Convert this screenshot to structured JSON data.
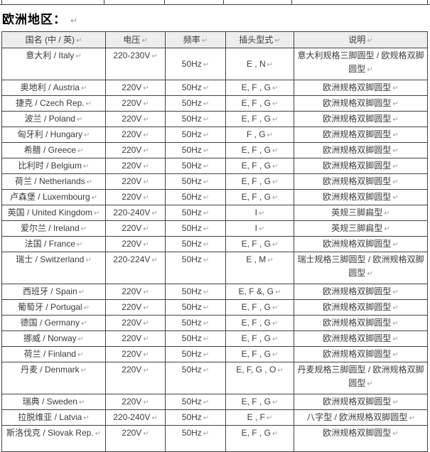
{
  "title": "欧洲地区：",
  "marks": {
    "eop": "↵"
  },
  "colors": {
    "header_bg": "#ededed",
    "border": "#424242",
    "text": "#3b3b3b",
    "mark": "#9c9c9c"
  },
  "table": {
    "headers": [
      "国名 (中 / 英)",
      "电压",
      "频率",
      "插头型式",
      "说明"
    ],
    "rows": [
      {
        "country": "意大利 / Italy",
        "voltage": "220-230V",
        "frequency": "50Hz",
        "plug": "E , N",
        "description": "意大利规格三脚圆型 / 欧规格双脚圆型",
        "size": "tall",
        "valign_middle": [
          "frequency",
          "plug"
        ]
      },
      {
        "country": "奥地利 / Austria",
        "voltage": "220V",
        "frequency": "50Hz",
        "plug": "E, F , G",
        "description": "欧洲规格双脚圆型"
      },
      {
        "country": "捷克 / Czech Rep.",
        "voltage": "220V",
        "frequency": "50Hz",
        "plug": "E, F , G",
        "description": "欧洲规格双脚圆型"
      },
      {
        "country": "波兰 / Poland",
        "voltage": "220V",
        "frequency": "50Hz",
        "plug": "E, F , G",
        "description": "欧洲规格双脚圆型"
      },
      {
        "country": "匈牙利 / Hungary",
        "voltage": "220V",
        "frequency": "50Hz",
        "plug": "F , G",
        "description": "欧洲规格双脚圆型"
      },
      {
        "country": "希腊 / Greece",
        "voltage": "220V",
        "frequency": "50Hz",
        "plug": "E, F , G",
        "description": "欧洲规格双脚圆型"
      },
      {
        "country": "比利时 / Belgium",
        "voltage": "220V",
        "frequency": "50Hz",
        "plug": "E, F , G",
        "description": "欧洲规格双脚圆型"
      },
      {
        "country": "荷兰 / Netherlands",
        "voltage": "220V",
        "frequency": "50Hz",
        "plug": "E, F , G",
        "description": "欧洲规格双脚圆型"
      },
      {
        "country": "卢森堡 / Luxembourg",
        "voltage": "220V",
        "frequency": "50Hz",
        "plug": "E, F , G",
        "description": "欧洲规格双脚圆型"
      },
      {
        "country": "英国 / United Kingdom",
        "voltage": "220-240V",
        "frequency": "50Hz",
        "plug": "I",
        "description": "英规三脚扁型"
      },
      {
        "country": "爱尔兰 / Ireland",
        "voltage": "220V",
        "frequency": "50Hz",
        "plug": "I",
        "description": "英规三脚扁型"
      },
      {
        "country": "法国 / France",
        "voltage": "220V",
        "frequency": "50Hz",
        "plug": "E, F , G",
        "description": "欧洲规格双脚圆型"
      },
      {
        "country": "瑞士 / Switzerland",
        "voltage": "220-224V",
        "frequency": "50Hz",
        "plug": "E , M",
        "description": "瑞士规格三脚圆型 / 欧洲规格双脚圆型",
        "size": "tall"
      },
      {
        "country": "西班牙 / Spain",
        "voltage": "220V",
        "frequency": "50Hz",
        "plug": "E, F &, G",
        "description": "欧洲规格双脚圆型"
      },
      {
        "country": "葡萄牙 / Portugal",
        "voltage": "220V",
        "frequency": "50Hz",
        "plug": "E, F , G",
        "description": "欧洲规格双脚圆型"
      },
      {
        "country": "德国 / Germany",
        "voltage": "220V",
        "frequency": "50Hz",
        "plug": "E, F , G",
        "description": "欧洲规格双脚圆型"
      },
      {
        "country": "挪威 / Norway",
        "voltage": "220V",
        "frequency": "50Hz",
        "plug": "E, F , G",
        "description": "欧洲规格双脚圆型"
      },
      {
        "country": "荷兰 / Finland",
        "voltage": "220V",
        "frequency": "50Hz",
        "plug": "E, F , G",
        "description": "欧洲规格双脚圆型"
      },
      {
        "country": "丹麦 / Denmark",
        "voltage": "220V",
        "frequency": "50Hz",
        "plug": "E, F, G , O",
        "description": "丹麦规格三脚圆型 / 欧洲规格双脚圆型",
        "size": "tall"
      },
      {
        "country": "瑞典 / Sweden",
        "voltage": "220V",
        "frequency": "50Hz",
        "plug": "E, F , G",
        "description": "欧洲规格双脚圆型"
      },
      {
        "country": "拉脱维亚 / Latvia",
        "voltage": "220-240V",
        "frequency": "50Hz",
        "plug": "E , F",
        "description": "八字型 / 欧洲规格双脚圆型"
      },
      {
        "country": "斯洛伐克 / Slovak Rep.",
        "voltage": "220V",
        "frequency": "50Hz",
        "plug": "E, F , G",
        "description": "欧洲规格双脚圆型",
        "size": "tall2"
      }
    ]
  }
}
